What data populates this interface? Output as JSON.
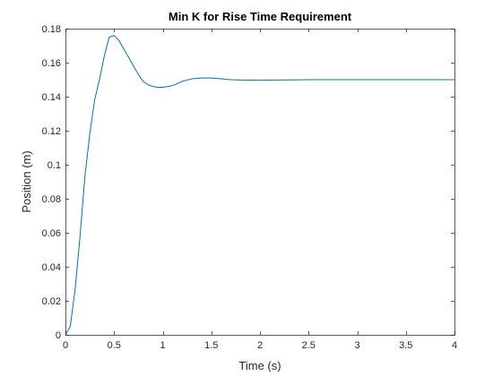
{
  "chart_data": {
    "type": "line",
    "title": "Min K for Rise Time Requirement",
    "xlabel": "Time (s)",
    "ylabel": "Position (m)",
    "xlim": [
      0,
      4
    ],
    "ylim": [
      0,
      0.18
    ],
    "xticks": [
      0,
      0.5,
      1,
      1.5,
      2,
      2.5,
      3,
      3.5,
      4
    ],
    "xtick_labels": [
      "0",
      "0.5",
      "1",
      "1.5",
      "2",
      "2.5",
      "3",
      "3.5",
      "4"
    ],
    "yticks": [
      0,
      0.02,
      0.04,
      0.06,
      0.08,
      0.1,
      0.12,
      0.14,
      0.16,
      0.18
    ],
    "ytick_labels": [
      "0",
      "0.02",
      "0.04",
      "0.06",
      "0.08",
      "0.1",
      "0.12",
      "0.14",
      "0.16",
      "0.18"
    ],
    "grid": false,
    "box": true,
    "line_color": "#0072BD",
    "axis_color": "#262626",
    "series": [
      {
        "x": [
          0,
          0.05,
          0.1,
          0.15,
          0.2,
          0.25,
          0.3,
          0.35,
          0.4,
          0.45,
          0.5,
          0.55,
          0.6,
          0.65,
          0.7,
          0.75,
          0.8,
          0.85,
          0.9,
          0.95,
          1.0,
          1.05,
          1.1,
          1.2,
          1.3,
          1.4,
          1.5,
          1.6,
          1.7,
          1.8,
          2.0,
          2.2,
          2.5,
          3.0,
          3.5,
          4.0
        ],
        "y": [
          0,
          0.005,
          0.027,
          0.058,
          0.093,
          0.118,
          0.138,
          0.15,
          0.164,
          0.175,
          0.176,
          0.173,
          0.168,
          0.163,
          0.158,
          0.153,
          0.149,
          0.147,
          0.146,
          0.1455,
          0.1455,
          0.146,
          0.1465,
          0.149,
          0.1505,
          0.151,
          0.151,
          0.1505,
          0.15,
          0.1498,
          0.1497,
          0.1498,
          0.15,
          0.15,
          0.15,
          0.15
        ]
      }
    ]
  }
}
